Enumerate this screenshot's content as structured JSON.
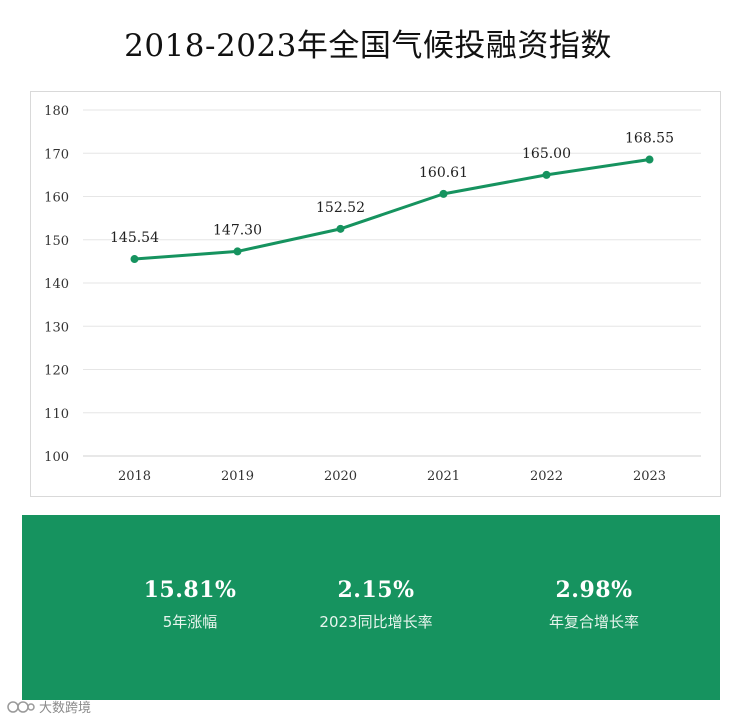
{
  "title": "2018-2023年全国气候投融资指数",
  "chart_data": {
    "type": "line",
    "title": "2018-2023年全国气候投融资指数",
    "x": [
      "2018",
      "2019",
      "2020",
      "2021",
      "2022",
      "2023"
    ],
    "values": [
      145.54,
      147.3,
      152.52,
      160.61,
      165.0,
      168.55
    ],
    "data_labels": [
      "145.54",
      "147.30",
      "152.52",
      "160.61",
      "165.00",
      "168.55"
    ],
    "ylim": [
      100,
      180
    ],
    "yticks": [
      100,
      110,
      120,
      130,
      140,
      150,
      160,
      170,
      180
    ],
    "grid": true,
    "line_color": "#16935f"
  },
  "stats": [
    {
      "value": "15.81%",
      "label": "5年涨幅"
    },
    {
      "value": "2.15%",
      "label": "2023同比增长率"
    },
    {
      "value": "2.98%",
      "label": "年复合增长率"
    }
  ],
  "watermark": {
    "text": "大数跨境"
  },
  "colors": {
    "accent": "#16935f",
    "grid": "#e6e6e6"
  }
}
